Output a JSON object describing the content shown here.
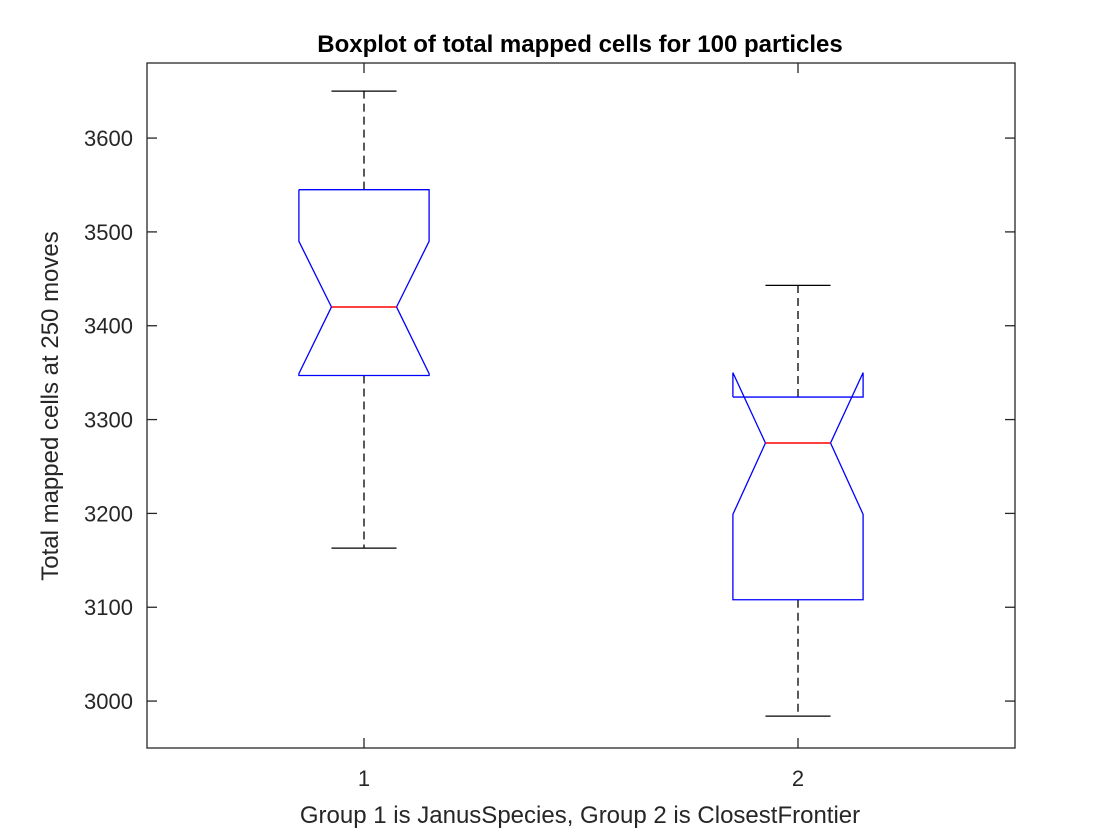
{
  "chart_data": {
    "type": "box",
    "title": "Boxplot of total mapped cells for 100 particles",
    "xlabel": "Group 1 is JanusSpecies, Group 2 is ClosestFrontier",
    "ylabel": "Total mapped cells at 250 moves",
    "categories": [
      "1",
      "2"
    ],
    "ylim": [
      2950,
      3680
    ],
    "yticks": [
      3000,
      3100,
      3200,
      3300,
      3400,
      3500,
      3600
    ],
    "notched": true,
    "boxes": [
      {
        "group": "1",
        "whisker_low": 3163,
        "q1": 3347,
        "median": 3420,
        "q3": 3545,
        "whisker_high": 3650,
        "notch_low": 3349,
        "notch_high": 3490
      },
      {
        "group": "2",
        "whisker_low": 2984,
        "q1": 3108,
        "median": 3275,
        "q3": 3324,
        "whisker_high": 3443,
        "notch_low": 3199,
        "notch_high": 3350
      }
    ],
    "colors": {
      "box": "#0000ff",
      "median": "#ff0000",
      "whisker": "#000000",
      "axis": "#262626"
    },
    "grid": false,
    "legend": false
  }
}
